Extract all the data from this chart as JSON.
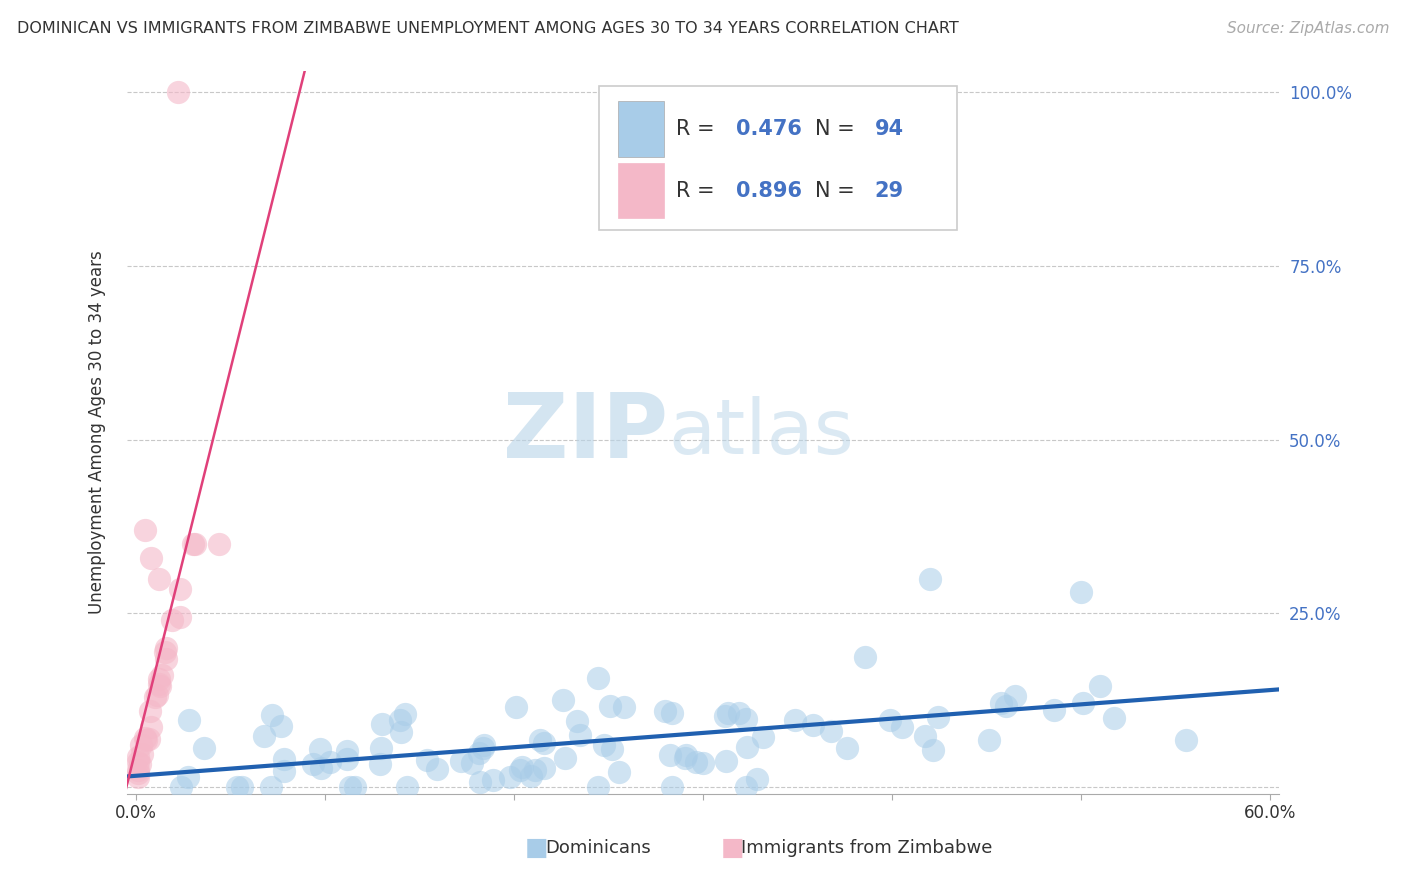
{
  "title": "DOMINICAN VS IMMIGRANTS FROM ZIMBABWE UNEMPLOYMENT AMONG AGES 30 TO 34 YEARS CORRELATION CHART",
  "source": "Source: ZipAtlas.com",
  "ylabel": "Unemployment Among Ages 30 to 34 years",
  "watermark_zip": "ZIP",
  "watermark_atlas": "atlas",
  "R_blue": 0.476,
  "N_blue": 94,
  "R_pink": 0.896,
  "N_pink": 29,
  "label_blue": "Dominicans",
  "label_pink": "Immigrants from Zimbabwe",
  "xlim": [
    -0.005,
    0.605
  ],
  "ylim": [
    -0.01,
    1.03
  ],
  "blue_scatter_color": "#a8cce8",
  "pink_scatter_color": "#f4b8c8",
  "blue_line_color": "#2060b0",
  "pink_line_color": "#e0407a",
  "background_color": "#ffffff",
  "grid_color": "#c8c8c8",
  "text_color": "#333333",
  "axis_num_color": "#4472c4",
  "title_fontsize": 11.5,
  "tick_fontsize": 12,
  "ylabel_fontsize": 12,
  "legend_fontsize": 15,
  "watermark_fontsize": 65,
  "source_fontsize": 11,
  "blue_seed": 42,
  "pink_seed": 17
}
